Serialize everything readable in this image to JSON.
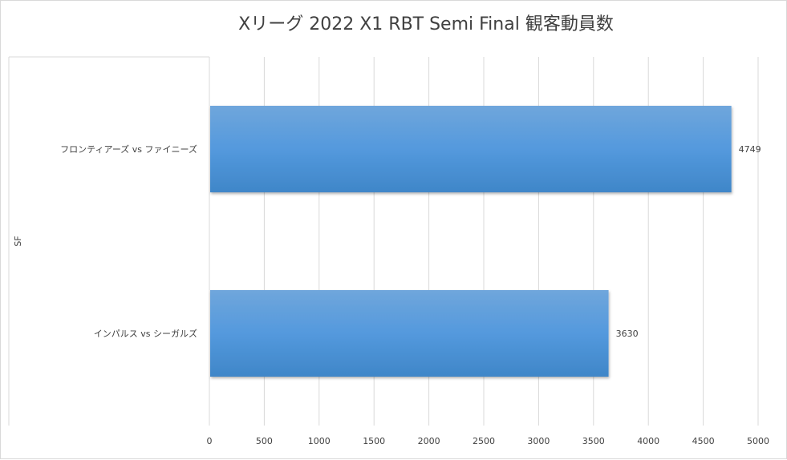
{
  "chart_data": {
    "type": "bar",
    "orientation": "horizontal",
    "title": "Xリーグ 2022 X1 RBT Semi Final 観客動員数",
    "group_label": "SF",
    "categories": [
      "フロンティアーズ vs ファイニーズ",
      "インパルス vs シーガルズ"
    ],
    "values": [
      4749,
      3630
    ],
    "data_labels": [
      "4749",
      "3630"
    ],
    "xlim": [
      0,
      5000
    ],
    "xticks": [
      "0",
      "500",
      "1000",
      "1500",
      "2000",
      "2500",
      "3000",
      "3500",
      "4000",
      "4500",
      "5000"
    ],
    "grid": true,
    "legend": "none",
    "bar_color": "#5b9bd5"
  }
}
